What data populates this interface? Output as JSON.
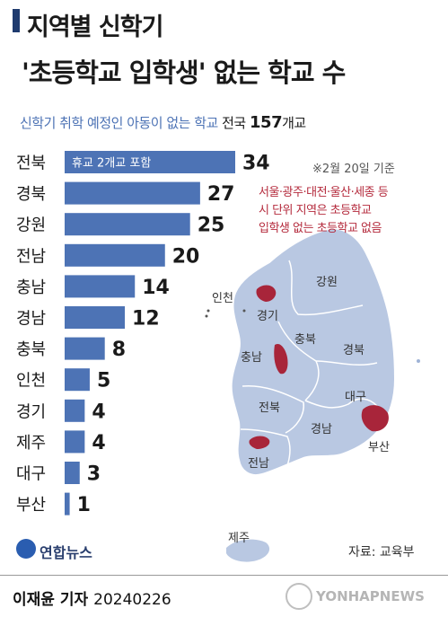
{
  "header": {
    "title_line1": "지역별 신학기",
    "title_line2": "'초등학교 입학생' 없는 학교 수"
  },
  "subtitle": {
    "lead": "신학기 취학 예정인 아동이 없는 학교",
    "total_prefix": "전국",
    "total_value": "157",
    "total_unit": "개교"
  },
  "notes": {
    "date": "※2월 20일 기준",
    "red_line1": "서울·광주·대전·울산·세종 등",
    "red_line2": "시 단위 지역은 초등학교",
    "red_line3": "입학생 없는 초등학교 없음"
  },
  "chart_data": {
    "type": "bar",
    "orientation": "horizontal",
    "categories": [
      "전북",
      "경북",
      "강원",
      "전남",
      "충남",
      "경남",
      "충북",
      "인천",
      "경기",
      "제주",
      "대구",
      "부산"
    ],
    "values": [
      34,
      27,
      25,
      20,
      14,
      12,
      8,
      5,
      4,
      4,
      3,
      1
    ],
    "annotations": [
      {
        "category": "전북",
        "text": "휴교 2개교 포함"
      }
    ],
    "bar_color": "#4d73b5",
    "grid": false
  },
  "map": {
    "region_labels": [
      "인천",
      "강원",
      "경기",
      "충북",
      "충남",
      "경북",
      "대구",
      "전북",
      "경남",
      "부산",
      "전남",
      "제주"
    ],
    "land_color": "#b9c8e2",
    "highlight_color": "#a8253a"
  },
  "footer": {
    "logo_text": "연합뉴스",
    "source": "자료: 교육부",
    "reporter": "이재윤 기자",
    "date": "20240226",
    "watermark": "YONHAPNEWS"
  }
}
